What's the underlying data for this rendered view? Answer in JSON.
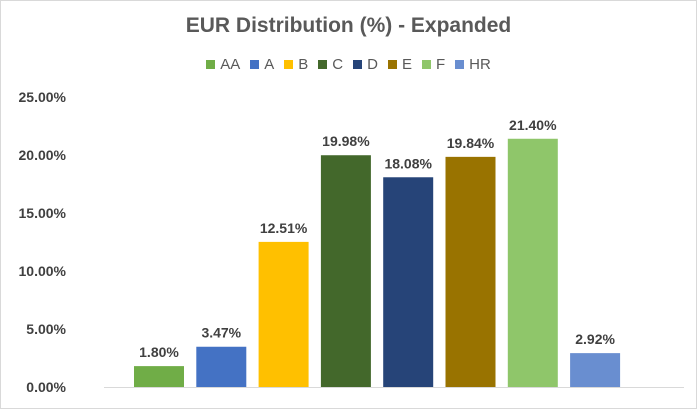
{
  "chart_data": {
    "type": "bar",
    "title": "EUR Distribution (%) - Expanded",
    "xlabel": "",
    "ylabel": "",
    "ylim": [
      0,
      25
    ],
    "y_ticks": [
      "0.00%",
      "5.00%",
      "10.00%",
      "15.00%",
      "20.00%",
      "25.00%"
    ],
    "grid": false,
    "legend_position": "top",
    "categories": [
      "AA",
      "A",
      "B",
      "C",
      "D",
      "E",
      "F",
      "HR"
    ],
    "values": [
      1.8,
      3.47,
      12.51,
      19.98,
      18.08,
      19.84,
      21.4,
      2.92
    ],
    "data_labels": [
      "1.80%",
      "3.47%",
      "12.51%",
      "19.98%",
      "18.08%",
      "19.84%",
      "21.40%",
      "2.92%"
    ],
    "colors": [
      "#70ad47",
      "#4472c4",
      "#ffc000",
      "#43682b",
      "#264478",
      "#997300",
      "#8fc66a",
      "#698ed0"
    ]
  }
}
